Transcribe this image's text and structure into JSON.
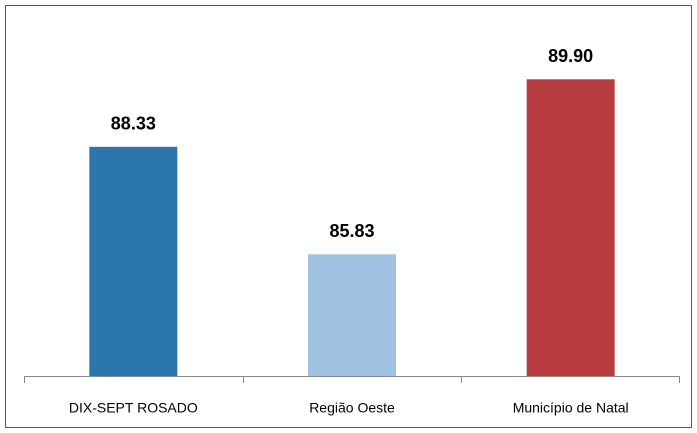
{
  "chart_data": {
    "type": "bar",
    "categories": [
      "DIX-SEPT ROSADO",
      "Região Oeste",
      "Município de Natal"
    ],
    "series": [
      {
        "values": [
          88.33,
          85.83,
          89.9
        ],
        "value_labels": [
          "88.33",
          "85.83",
          "89.90"
        ],
        "colors": [
          "#2b77ad",
          "#9fc2e2",
          "#b63c3f"
        ]
      }
    ],
    "ylim": [
      83,
      91
    ]
  }
}
